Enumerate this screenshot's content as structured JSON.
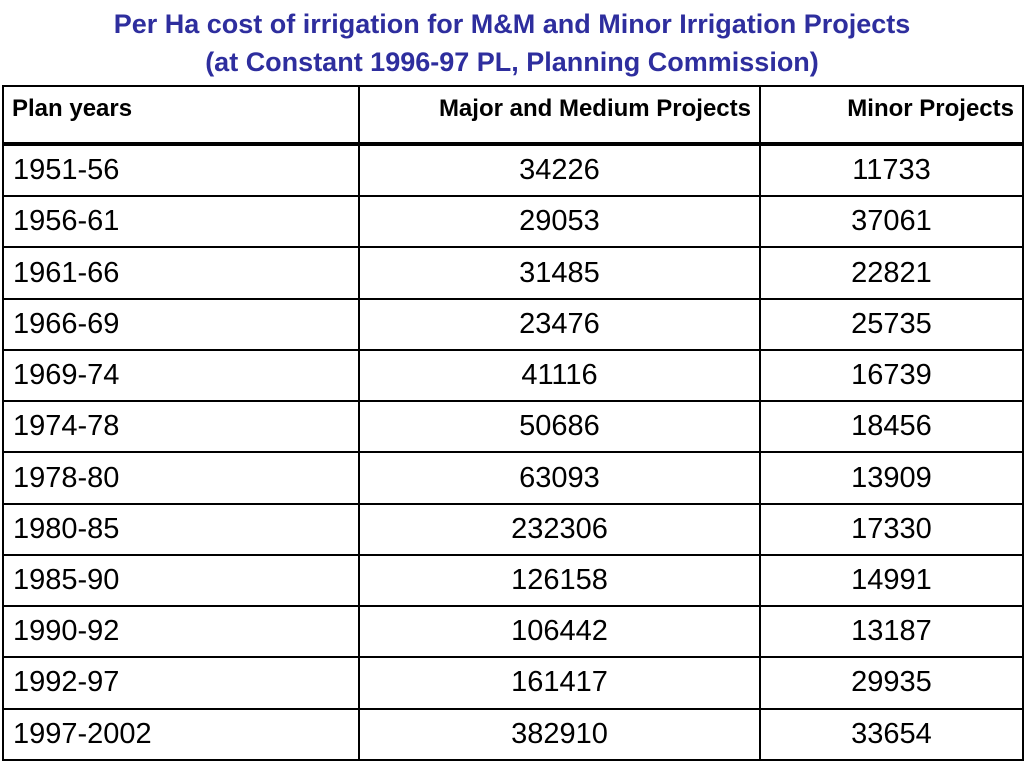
{
  "title": {
    "line1": "Per Ha cost of irrigation for M&M and Minor Irrigation Projects",
    "line2": "(at Constant 1996-97 PL, Planning Commission)"
  },
  "table": {
    "headers": [
      "Plan years",
      "Major and Medium Projects",
      "Minor Projects"
    ],
    "rows": [
      [
        "1951-56",
        "34226",
        "11733"
      ],
      [
        "1956-61",
        "29053",
        "37061"
      ],
      [
        "1961-66",
        "31485",
        "22821"
      ],
      [
        "1966-69",
        "23476",
        "25735"
      ],
      [
        "1969-74",
        "41116",
        "16739"
      ],
      [
        "1974-78",
        "50686",
        "18456"
      ],
      [
        "1978-80",
        "63093",
        "13909"
      ],
      [
        "1980-85",
        "232306",
        "17330"
      ],
      [
        "1985-90",
        "126158",
        "14991"
      ],
      [
        "1990-92",
        "106442",
        "13187"
      ],
      [
        "1992-97",
        "161417",
        "29935"
      ],
      [
        "1997-2002",
        "382910",
        "33654"
      ]
    ]
  },
  "colors": {
    "title": "#2e2e9e",
    "border": "#000000",
    "text": "#000000"
  }
}
